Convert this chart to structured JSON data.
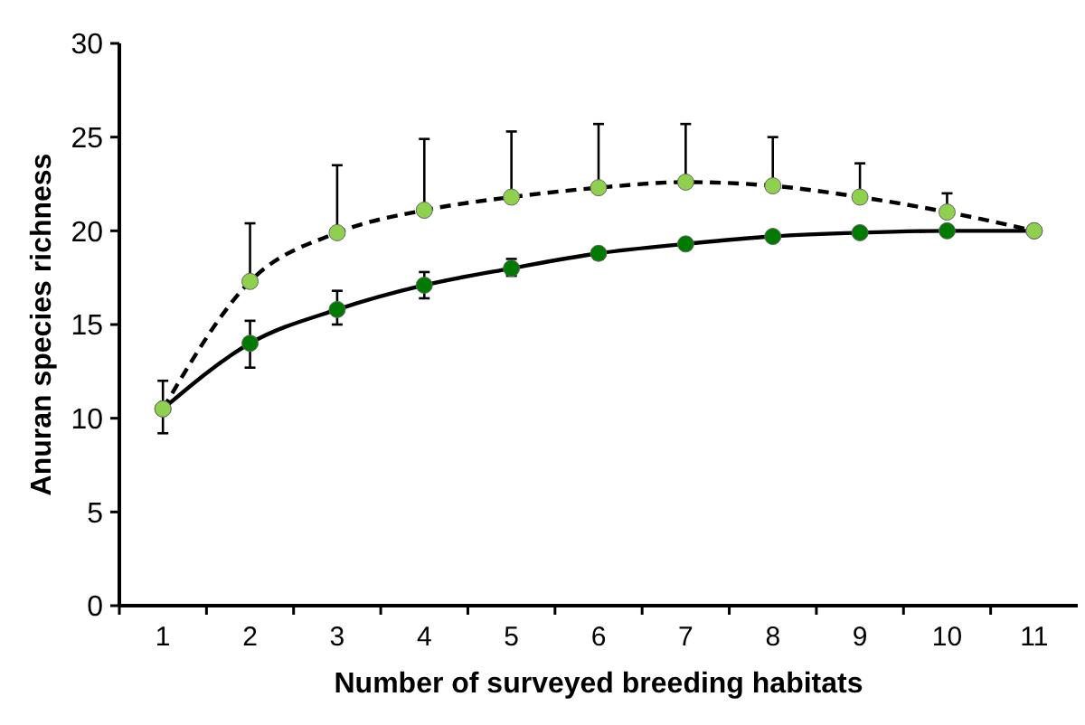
{
  "chart_data": {
    "type": "line",
    "xlabel": "Number of surveyed breeding habitats",
    "ylabel": "Anuran species richness",
    "x": [
      1,
      2,
      3,
      4,
      5,
      6,
      7,
      8,
      9,
      10,
      11
    ],
    "xlim": [
      0.5,
      11.5
    ],
    "xticks": [
      1,
      2,
      3,
      4,
      5,
      6,
      7,
      8,
      9,
      10,
      11
    ],
    "ylim": [
      0,
      30
    ],
    "yticks": [
      0,
      5,
      10,
      15,
      20,
      25,
      30
    ],
    "grid": false,
    "marker": "circle",
    "series": [
      {
        "color": "#007a00",
        "line_style": "solid",
        "values": [
          10.5,
          14.0,
          15.8,
          17.1,
          18.0,
          18.8,
          19.3,
          19.7,
          19.9,
          20.0,
          20.0
        ],
        "errors": [
          [
            9.2,
            10.5
          ],
          [
            12.7,
            15.2
          ],
          [
            15.0,
            16.8
          ],
          [
            16.4,
            17.8
          ],
          [
            17.6,
            18.5
          ],
          [
            18.5,
            19.0
          ],
          null,
          null,
          null,
          null,
          null
        ]
      },
      {
        "color": "#8fd14f",
        "line_style": "dashed",
        "values": [
          10.5,
          17.3,
          19.9,
          21.1,
          21.8,
          22.3,
          22.6,
          22.4,
          21.8,
          21.0,
          20.0
        ],
        "errors": [
          [
            10.5,
            12.0
          ],
          [
            17.3,
            20.4
          ],
          [
            19.9,
            23.5
          ],
          [
            21.1,
            24.9
          ],
          [
            21.8,
            25.3
          ],
          [
            22.3,
            25.7
          ],
          [
            22.6,
            25.7
          ],
          [
            22.4,
            25.0
          ],
          [
            21.8,
            23.6
          ],
          [
            21.0,
            22.0
          ],
          null
        ]
      }
    ]
  }
}
